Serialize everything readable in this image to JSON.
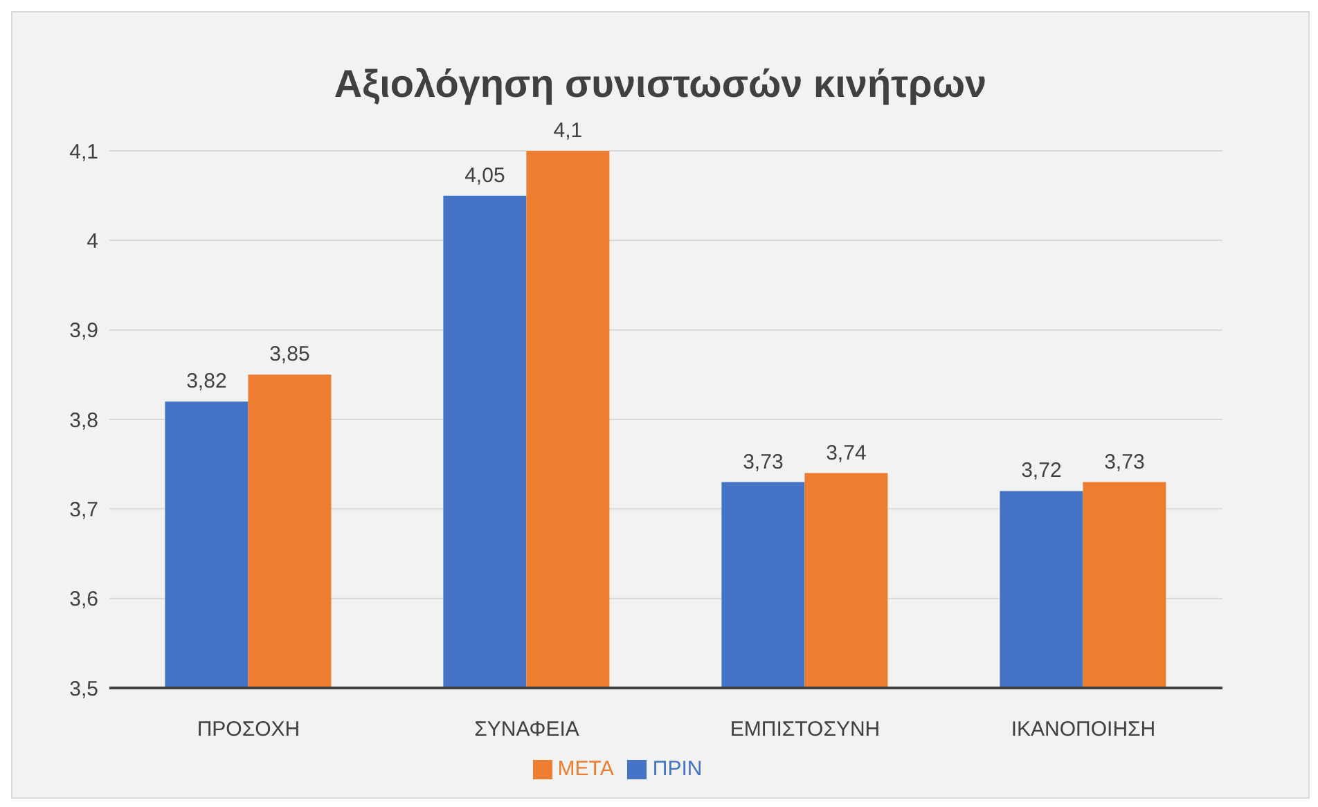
{
  "chart_data": {
    "type": "bar",
    "title": "Αξιολόγηση συνιστωσών κινήτρων",
    "categories": [
      "ΠΡΟΣΟΧΗ",
      "ΣΥΝΑΦΕΙΑ",
      "ΕΜΠΙΣΤΟΣΥΝΗ",
      "ΙΚΑΝΟΠΟΙΗΣΗ"
    ],
    "series": [
      {
        "name": "ΠΡΙΝ",
        "color": "#4472c4",
        "values": [
          3.82,
          4.05,
          3.73,
          3.72
        ],
        "value_labels": [
          "3,82",
          "4,05",
          "3,73",
          "3,72"
        ]
      },
      {
        "name": "ΜΕΤΑ",
        "color": "#ed7d31",
        "values": [
          3.85,
          4.1,
          3.74,
          3.73
        ],
        "value_labels": [
          "3,85",
          "4,1",
          "3,74",
          "3,73"
        ]
      }
    ],
    "ylim": [
      3.5,
      4.1
    ],
    "yticks": [
      {
        "value": 3.5,
        "label": "3,5"
      },
      {
        "value": 3.6,
        "label": "3,6"
      },
      {
        "value": 3.7,
        "label": "3,7"
      },
      {
        "value": 3.8,
        "label": "3,8"
      },
      {
        "value": 3.9,
        "label": "3,9"
      },
      {
        "value": 4,
        "label": "4"
      },
      {
        "value": 4.1,
        "label": "4,1"
      }
    ],
    "grid": "y",
    "legend": "bottom"
  }
}
